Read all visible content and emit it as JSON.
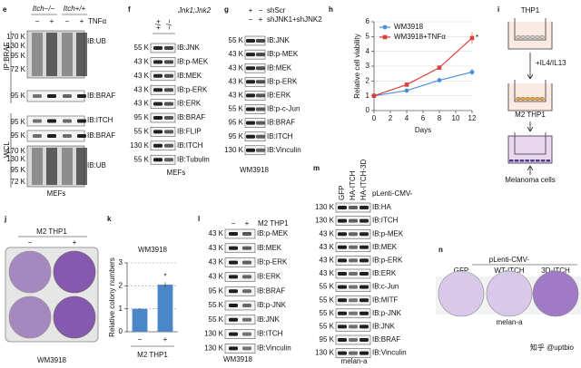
{
  "panels": {
    "e": {
      "letter": "e",
      "genotypes": [
        "Itch−/−",
        "Itch+/+"
      ],
      "treatment": "TNFα",
      "lanes": [
        "−",
        "+",
        "−",
        "+"
      ],
      "groups": [
        "IP:BRAF",
        "WCL"
      ],
      "mw": [
        "170 K",
        "130 K",
        "95 K",
        "72 K",
        "95 K",
        "95 K",
        "95 K",
        "170 K",
        "130 K",
        "95 K",
        "72 K"
      ],
      "blots": [
        "IB:UB",
        "IB:BRAF",
        "IB:ITCH",
        "IB:BRAF",
        "IB:UB"
      ],
      "cell": "MEFs"
    },
    "f": {
      "letter": "f",
      "lanes": [
        "+/+",
        "−/−"
      ],
      "genotype": "Jnk1;Jnk2",
      "mw": [
        "55 K",
        "43 K",
        "43 K",
        "43 K",
        "43 K",
        "95 K",
        "55 K",
        "130 K",
        "55 K"
      ],
      "blots": [
        "IB:JNK",
        "IB:p-MEK",
        "IB:MEK",
        "IB:p-ERK",
        "IB:ERK",
        "IB:BRAF",
        "IB:FLIP",
        "IB:ITCH",
        "IB:Tubulin"
      ],
      "cell": "MEFs"
    },
    "g": {
      "letter": "g",
      "rows": [
        {
          "signs": [
            "+",
            "−"
          ],
          "label": "shScr"
        },
        {
          "signs": [
            "−",
            "+"
          ],
          "label": "shJNK1+shJNK2"
        }
      ],
      "mw": [
        "55 K",
        "43 K",
        "43 K",
        "43 K",
        "43 K",
        "55 K",
        "95 K",
        "95 K",
        "130 K"
      ],
      "blots": [
        "IB:JNK",
        "IB:p-MEK",
        "IB:MEK",
        "IB:p-ERK",
        "IB:ERK",
        "IB:p-c-Jun",
        "IB:BRAF",
        "IB:ITCH",
        "IB:Vinculin"
      ],
      "cell": "WM3918"
    },
    "i": {
      "letter": "i",
      "steps": [
        "THP1",
        "+IL4/IL13",
        "M2 THP1",
        "Melanoma cells"
      ]
    },
    "j": {
      "letter": "j",
      "treatment": "M2 THP1",
      "lanes": [
        "−",
        "+"
      ],
      "cell": "WM3918"
    },
    "l": {
      "letter": "l",
      "lanes": [
        "−",
        "+"
      ],
      "treatment": "M2 THP1",
      "mw": [
        "43 K",
        "43 K",
        "43 K",
        "43 K",
        "95 K",
        "55 K",
        "55 K",
        "130 K",
        "130 K"
      ],
      "blots": [
        "IB:p-MEK",
        "IB:MEK",
        "IB:p-ERK",
        "IB:ERK",
        "IB:BRAF",
        "IB:p-JNK",
        "IB:JNK",
        "IB:ITCH",
        "IB:Vinculin"
      ],
      "cell": "WM3918"
    },
    "m": {
      "letter": "m",
      "vector": "pLenti-CMV-",
      "lanes": [
        "GFP",
        "HA-ITCH",
        "HA-ITCH-3D"
      ],
      "mw": [
        "130 K",
        "130 K",
        "43 K",
        "43 K",
        "43 K",
        "43 K",
        "55 K",
        "55 K",
        "55 K",
        "55 K",
        "95 K",
        "130 K"
      ],
      "blots": [
        "IB:HA",
        "IB:ITCH",
        "IB:p-MEK",
        "IB:MEK",
        "IB:p-ERK",
        "IB:ERK",
        "IB:c-Jun",
        "IB:MITF",
        "IB:p-JNK",
        "IB:JNK",
        "IB:BRAF",
        "IB:Vinculin"
      ],
      "cell": "melan-a"
    },
    "n": {
      "letter": "n",
      "vector": "pLenti-CMV-",
      "lanes": [
        "GFP",
        "WT-ITCH",
        "3D-ITCH"
      ],
      "cell": "melan-a"
    }
  },
  "chart_data": [
    {
      "panel": "h",
      "type": "line",
      "ylabel": "Relative cell viability",
      "xlabel": "Days",
      "x": [
        0,
        4,
        8,
        12
      ],
      "series": [
        {
          "name": "WM3918",
          "color": "#4a90d9",
          "marker": "circle",
          "values": [
            1,
            1.35,
            2.05,
            2.6
          ],
          "errors": [
            0,
            0.1,
            0.1,
            0.25
          ]
        },
        {
          "name": "WM3918+TNFα",
          "color": "#d9413a",
          "marker": "square",
          "values": [
            1,
            1.75,
            2.9,
            4.9
          ],
          "errors": [
            0,
            0.1,
            0.15,
            0.4
          ]
        }
      ],
      "xlim": [
        0,
        12
      ],
      "xticks": [
        0,
        2,
        4,
        6,
        8,
        10,
        12
      ],
      "ylim": [
        0,
        6
      ],
      "yticks": [
        0,
        1,
        2,
        3,
        4,
        5,
        6
      ],
      "annotation": "*",
      "grid": true,
      "legend": "upper left"
    },
    {
      "panel": "k",
      "type": "bar",
      "title": "WM3918",
      "ylabel": "Relative colony numbers",
      "xlabel": "M2 THP1",
      "categories": [
        "−",
        "+"
      ],
      "values": [
        1,
        2.05
      ],
      "errors": [
        0.03,
        0.1
      ],
      "color": "#4a86c8",
      "ylim": [
        0,
        3
      ],
      "yticks": [
        0,
        1,
        2,
        3
      ],
      "grid": true,
      "annotation": "*"
    }
  ],
  "watermark": "知乎 @uptbio"
}
